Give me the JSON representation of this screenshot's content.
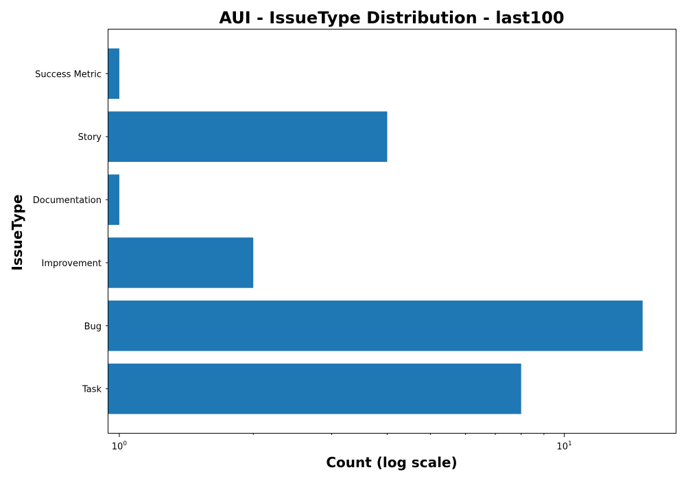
{
  "chart_data": {
    "type": "bar",
    "orientation": "horizontal",
    "title": "AUI - IssueType Distribution - last100",
    "xlabel": "Count (log scale)",
    "ylabel": "IssueType",
    "xscale": "log",
    "xlim": [
      0.945,
      17.8
    ],
    "x_tick_labels": [
      {
        "base": "10",
        "exp": "0",
        "value": 1
      },
      {
        "base": "10",
        "exp": "1",
        "value": 10
      }
    ],
    "categories": [
      "Task",
      "Bug",
      "Improvement",
      "Documentation",
      "Story",
      "Success Metric"
    ],
    "values": [
      8,
      15,
      2,
      1,
      4,
      1
    ],
    "bar_color": "#1f77b4",
    "grid": false,
    "legend": false
  }
}
